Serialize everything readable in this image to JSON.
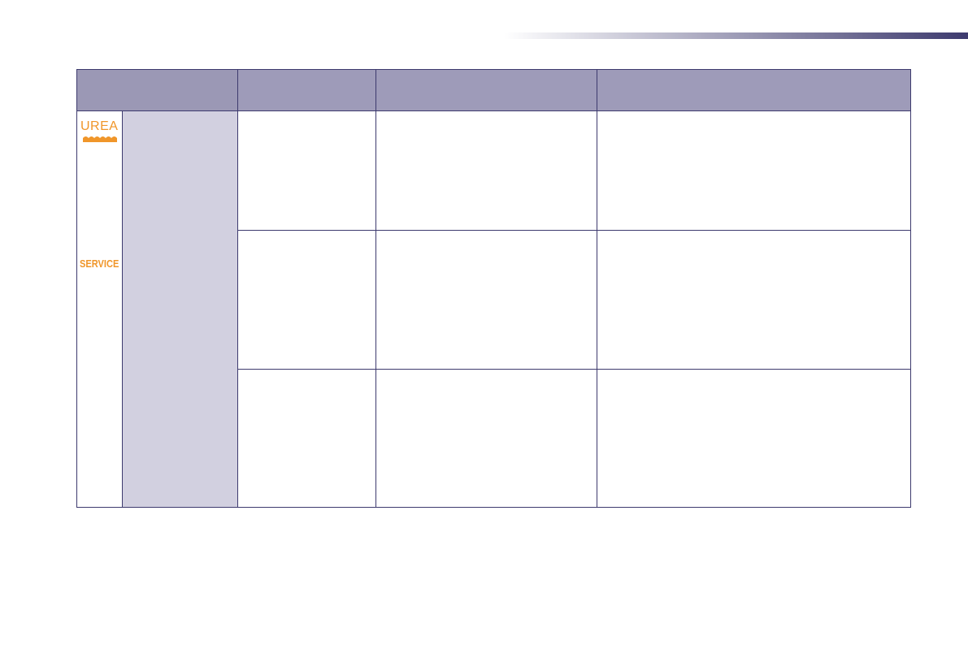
{
  "header_bar": {
    "colors": {
      "start": "#ffffff",
      "end": "#3d3a6e"
    }
  },
  "table": {
    "colors": {
      "border": "#3d3a6e",
      "header": "#9e9bb9",
      "shaded_column": "#d2d0e0",
      "icon": "#f0962a"
    },
    "header": [
      "",
      "",
      "",
      ""
    ],
    "indicators": [
      {
        "icon": "urea-warning-icon",
        "label": "UREA"
      },
      {
        "icon": "service-warning-icon",
        "label": "SERVICE"
      }
    ],
    "rows": [
      [
        "",
        "",
        ""
      ],
      [
        "",
        "",
        ""
      ],
      [
        "",
        "",
        ""
      ]
    ]
  }
}
